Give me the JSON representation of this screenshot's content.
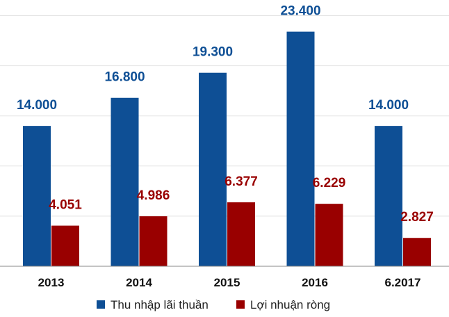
{
  "chart_data": {
    "type": "bar",
    "title": "",
    "xlabel": "",
    "ylabel": "",
    "categories": [
      "2013",
      "2014",
      "2015",
      "2016",
      "6.2017"
    ],
    "series": [
      {
        "name": "Thu nhập lãi thuần",
        "color": "#0e4f95",
        "values": [
          14000,
          16800,
          19300,
          23400,
          14000
        ],
        "labels": [
          "14.000",
          "16.800",
          "19.300",
          "23.400",
          "14.000"
        ]
      },
      {
        "name": "Lợi nhuận ròng",
        "color": "#990000",
        "values": [
          4051,
          4986,
          6377,
          6229,
          2827
        ],
        "labels": [
          "4.051",
          "4.986",
          "6.377",
          "6.229",
          "2.827"
        ]
      }
    ],
    "ylim": [
      0,
      25000
    ],
    "grid": true,
    "legend": "bottom"
  }
}
